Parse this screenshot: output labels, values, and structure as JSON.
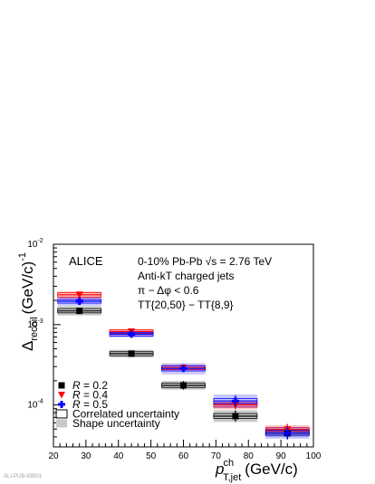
{
  "chart_data": {
    "type": "scatter",
    "title": "",
    "experiment_label": "ALICE",
    "annotations": [
      "0-10% Pb-Pb √s = 2.76 TeV",
      "Anti-kT charged jets",
      "π − Δφ < 0.6",
      "TT{20,50} − TT{8,9}"
    ],
    "xlabel_main": "p",
    "xlabel_sup": "ch",
    "xlabel_sub": "T,jet",
    "xlabel_unit": "(GeV/c)",
    "ylabel_main": "Δ",
    "ylabel_sub": "recoil",
    "ylabel_unit": "(GeV/c)",
    "ylabel_exp": "-1",
    "x_ticks": [
      "20",
      "30",
      "40",
      "50",
      "60",
      "70",
      "80",
      "90",
      "100"
    ],
    "y_tick_labels": [
      {
        "base": "10",
        "exp": "-4",
        "value": 0.0001
      },
      {
        "base": "10",
        "exp": "-3",
        "value": 0.001
      },
      {
        "base": "10",
        "exp": "-2",
        "value": 0.01
      }
    ],
    "xlim": [
      20,
      100
    ],
    "ylim": [
      3e-05,
      0.01
    ],
    "y_scale": "log",
    "legend_position": "bottom-left",
    "legend": [
      {
        "key": "r02",
        "symbol": "square",
        "color": "#000000",
        "prefix": "R",
        "text": " = 0.2"
      },
      {
        "key": "r04",
        "symbol": "triangle-down",
        "color": "#ff0000",
        "prefix": "R",
        "text": " = 0.4"
      },
      {
        "key": "r05",
        "symbol": "cross",
        "color": "#0000ff",
        "prefix": "R",
        "text": " = 0.5"
      },
      {
        "key": "corr",
        "symbol": "open-box",
        "color": "#000000",
        "prefix": "",
        "text": "Correlated uncertainty"
      },
      {
        "key": "shape",
        "symbol": "filled-box",
        "color": "#c8c8c8",
        "prefix": "",
        "text": "Shape uncertainty"
      }
    ],
    "series": [
      {
        "name": "R = 0.2",
        "color": "#000000",
        "band_color": "#000000",
        "marker": "square",
        "points": [
          {
            "x": 28,
            "xlo": 20,
            "xhi": 36,
            "y": 0.00148,
            "ylo": 0.00138,
            "yhi": 0.00158,
            "shape_lo": 0.0013,
            "shape_hi": 0.0017,
            "corr_lo": 0.0014,
            "corr_hi": 0.00158
          },
          {
            "x": 44,
            "xlo": 36,
            "xhi": 52,
            "y": 0.000435,
            "ylo": 0.0004,
            "yhi": 0.00047,
            "shape_lo": 0.00039,
            "shape_hi": 0.000485,
            "corr_lo": 0.00041,
            "corr_hi": 0.00046
          },
          {
            "x": 60,
            "xlo": 52,
            "xhi": 68,
            "y": 0.000175,
            "ylo": 0.000155,
            "yhi": 0.000198,
            "shape_lo": 0.000155,
            "shape_hi": 0.000198,
            "corr_lo": 0.000165,
            "corr_hi": 0.000186
          },
          {
            "x": 76,
            "xlo": 68,
            "xhi": 84,
            "y": 7.25e-05,
            "ylo": 6.15e-05,
            "yhi": 8.55e-05,
            "shape_lo": 6.15e-05,
            "shape_hi": 8.55e-05,
            "corr_lo": 6.8e-05,
            "corr_hi": 7.8e-05
          },
          {
            "x": 92,
            "xlo": 84,
            "xhi": 100,
            "y": 4.45e-05,
            "ylo": 3.8e-05,
            "yhi": 5.2e-05,
            "shape_lo": 4e-05,
            "shape_hi": 5e-05,
            "corr_lo": 4.2e-05,
            "corr_hi": 4.7e-05
          }
        ]
      },
      {
        "name": "R = 0.4",
        "color": "#ff0000",
        "band_color": "#ff0000",
        "marker": "triangle-down",
        "points": [
          {
            "x": 28,
            "xlo": 20,
            "xhi": 36,
            "y": 0.00235,
            "ylo": 0.00222,
            "yhi": 0.0025,
            "shape_lo": 0.00205,
            "shape_hi": 0.0026,
            "corr_lo": 0.0022,
            "corr_hi": 0.0025
          },
          {
            "x": 44,
            "xlo": 36,
            "xhi": 52,
            "y": 0.00082,
            "ylo": 0.00077,
            "yhi": 0.00087,
            "shape_lo": 0.00073,
            "shape_hi": 0.00088,
            "corr_lo": 0.00078,
            "corr_hi": 0.00086
          },
          {
            "x": 60,
            "xlo": 52,
            "xhi": 68,
            "y": 0.00029,
            "ylo": 0.000265,
            "yhi": 0.000315,
            "shape_lo": 0.000262,
            "shape_hi": 0.00032,
            "corr_lo": 0.000275,
            "corr_hi": 0.000305
          },
          {
            "x": 76,
            "xlo": 68,
            "xhi": 84,
            "y": 0.0001,
            "ylo": 8.8e-05,
            "yhi": 0.000114,
            "shape_lo": 8.8e-05,
            "shape_hi": 0.000114,
            "corr_lo": 9.4e-05,
            "corr_hi": 0.000106
          },
          {
            "x": 92,
            "xlo": 84,
            "xhi": 100,
            "y": 4.95e-05,
            "ylo": 4.2e-05,
            "yhi": 5.8e-05,
            "shape_lo": 4.4e-05,
            "shape_hi": 5.6e-05,
            "corr_lo": 4.7e-05,
            "corr_hi": 5.2e-05
          }
        ]
      },
      {
        "name": "R = 0.5",
        "color": "#0000ff",
        "band_color": "#0000ff",
        "marker": "cross",
        "points": [
          {
            "x": 28,
            "xlo": 20,
            "xhi": 36,
            "y": 0.00195,
            "ylo": 0.00182,
            "yhi": 0.0021,
            "shape_lo": 0.00172,
            "shape_hi": 0.0022,
            "corr_lo": 0.00185,
            "corr_hi": 0.00205
          },
          {
            "x": 44,
            "xlo": 36,
            "xhi": 52,
            "y": 0.00076,
            "ylo": 0.00071,
            "yhi": 0.00081,
            "shape_lo": 0.00069,
            "shape_hi": 0.00084,
            "corr_lo": 0.00072,
            "corr_hi": 0.0008
          },
          {
            "x": 60,
            "xlo": 52,
            "xhi": 68,
            "y": 0.000285,
            "ylo": 0.000258,
            "yhi": 0.000314,
            "shape_lo": 0.00024,
            "shape_hi": 0.00033,
            "corr_lo": 0.000265,
            "corr_hi": 0.000305
          },
          {
            "x": 76,
            "xlo": 68,
            "xhi": 84,
            "y": 0.000112,
            "ylo": 9.5e-05,
            "yhi": 0.000132,
            "shape_lo": 9.2e-05,
            "shape_hi": 0.000135,
            "corr_lo": 0.000104,
            "corr_hi": 0.00012
          },
          {
            "x": 92,
            "xlo": 84,
            "xhi": 100,
            "y": 4.45e-05,
            "ylo": 3.7e-05,
            "yhi": 5.4e-05,
            "shape_lo": 3.8e-05,
            "shape_hi": 5.3e-05,
            "corr_lo": 4.2e-05,
            "corr_hi": 4.8e-05
          }
        ]
      }
    ]
  },
  "footer": {
    "pub_id": "ALI-PUB-93501"
  }
}
